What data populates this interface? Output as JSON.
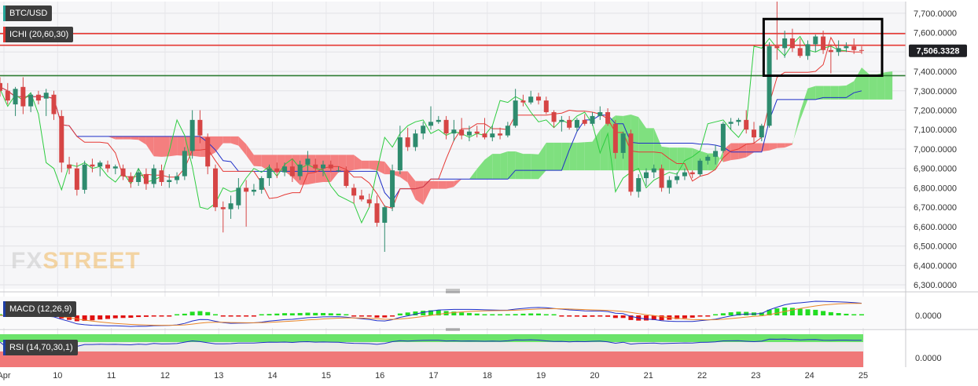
{
  "chart_data": {
    "type": "candlestick",
    "symbol": "BTC/USD",
    "indicators": {
      "ichimoku": {
        "label": "ICHI (20,60,30)"
      },
      "macd": {
        "label": "MACD (12,26,9)",
        "zero_label": "0.0000"
      },
      "rsi": {
        "label": "RSI (14,70,30,1)",
        "zero_label": "0.0000"
      }
    },
    "last_price": "7,506.3328",
    "y_axis": {
      "min": 6280,
      "max": 7760,
      "ticks": [
        "6,300.0000",
        "6,400.0000",
        "6,500.0000",
        "6,600.0000",
        "6,700.0000",
        "6,800.0000",
        "6,900.0000",
        "7,000.0000",
        "7,100.0000",
        "7,200.0000",
        "7,300.0000",
        "7,400.0000",
        "7,500.0000",
        "7,600.0000",
        "7,700.0000"
      ]
    },
    "x_axis": {
      "labels": [
        "Apr",
        "10",
        "11",
        "12",
        "13",
        "14",
        "15",
        "16",
        "17",
        "18",
        "19",
        "20",
        "21",
        "22",
        "23",
        "24",
        "25"
      ]
    },
    "horizontal_levels": [
      {
        "price": 7595,
        "color": "#e53935"
      },
      {
        "price": 7535,
        "color": "#e53935"
      },
      {
        "price": 7378,
        "color": "#2e7d32"
      }
    ],
    "highlight_box": {
      "x_range": [
        "23",
        "25"
      ],
      "price_range": [
        7378,
        7670
      ]
    },
    "candles": [
      {
        "o": 7340,
        "h": 7370,
        "l": 7270,
        "c": 7300
      },
      {
        "o": 7300,
        "h": 7340,
        "l": 7230,
        "c": 7250
      },
      {
        "o": 7230,
        "h": 7320,
        "l": 7170,
        "c": 7310
      },
      {
        "o": 7320,
        "h": 7370,
        "l": 7180,
        "c": 7220
      },
      {
        "o": 7220,
        "h": 7290,
        "l": 7190,
        "c": 7280
      },
      {
        "o": 7280,
        "h": 7300,
        "l": 7230,
        "c": 7250
      },
      {
        "o": 7260,
        "h": 7310,
        "l": 7170,
        "c": 7290
      },
      {
        "o": 7280,
        "h": 7300,
        "l": 7150,
        "c": 7180
      },
      {
        "o": 7170,
        "h": 7200,
        "l": 6880,
        "c": 6930
      },
      {
        "o": 6920,
        "h": 6960,
        "l": 6870,
        "c": 6900
      },
      {
        "o": 6900,
        "h": 6930,
        "l": 6760,
        "c": 6790
      },
      {
        "o": 6790,
        "h": 6940,
        "l": 6770,
        "c": 6920
      },
      {
        "o": 6920,
        "h": 6950,
        "l": 6880,
        "c": 6910
      },
      {
        "o": 6910,
        "h": 6940,
        "l": 6860,
        "c": 6930
      },
      {
        "o": 6920,
        "h": 6940,
        "l": 6880,
        "c": 6900
      },
      {
        "o": 6900,
        "h": 6920,
        "l": 6870,
        "c": 6910
      },
      {
        "o": 6900,
        "h": 6920,
        "l": 6840,
        "c": 6860
      },
      {
        "o": 6860,
        "h": 6880,
        "l": 6800,
        "c": 6830
      },
      {
        "o": 6830,
        "h": 6900,
        "l": 6810,
        "c": 6880
      },
      {
        "o": 6870,
        "h": 6900,
        "l": 6790,
        "c": 6820
      },
      {
        "o": 6820,
        "h": 6920,
        "l": 6800,
        "c": 6900
      },
      {
        "o": 6890,
        "h": 6920,
        "l": 6810,
        "c": 6830
      },
      {
        "o": 6830,
        "h": 6870,
        "l": 6800,
        "c": 6840
      },
      {
        "o": 6840,
        "h": 6880,
        "l": 6820,
        "c": 6860
      },
      {
        "o": 6860,
        "h": 7010,
        "l": 6840,
        "c": 6990
      },
      {
        "o": 6990,
        "h": 7200,
        "l": 6950,
        "c": 7150
      },
      {
        "o": 7150,
        "h": 7200,
        "l": 7030,
        "c": 7070
      },
      {
        "o": 7060,
        "h": 7080,
        "l": 6870,
        "c": 6910
      },
      {
        "o": 6900,
        "h": 6920,
        "l": 6680,
        "c": 6700
      },
      {
        "o": 6700,
        "h": 6730,
        "l": 6570,
        "c": 6690
      },
      {
        "o": 6690,
        "h": 6760,
        "l": 6640,
        "c": 6720
      },
      {
        "o": 6710,
        "h": 6850,
        "l": 6690,
        "c": 6800
      },
      {
        "o": 6800,
        "h": 6840,
        "l": 6600,
        "c": 6780
      },
      {
        "o": 6780,
        "h": 6820,
        "l": 6760,
        "c": 6790
      },
      {
        "o": 6790,
        "h": 6860,
        "l": 6770,
        "c": 6850
      },
      {
        "o": 6850,
        "h": 6920,
        "l": 6810,
        "c": 6900
      },
      {
        "o": 6900,
        "h": 6930,
        "l": 6850,
        "c": 6880
      },
      {
        "o": 6880,
        "h": 6930,
        "l": 6860,
        "c": 6910
      },
      {
        "o": 6910,
        "h": 6950,
        "l": 6830,
        "c": 6860
      },
      {
        "o": 6860,
        "h": 6940,
        "l": 6840,
        "c": 6920
      },
      {
        "o": 6920,
        "h": 6990,
        "l": 6880,
        "c": 6950
      },
      {
        "o": 6920,
        "h": 6950,
        "l": 6880,
        "c": 6900
      },
      {
        "o": 6900,
        "h": 6940,
        "l": 6860,
        "c": 6920
      },
      {
        "o": 6920,
        "h": 6940,
        "l": 6880,
        "c": 6900
      },
      {
        "o": 6890,
        "h": 6910,
        "l": 6880,
        "c": 6890
      },
      {
        "o": 6890,
        "h": 6910,
        "l": 6800,
        "c": 6810
      },
      {
        "o": 6800,
        "h": 6820,
        "l": 6720,
        "c": 6760
      },
      {
        "o": 6760,
        "h": 6790,
        "l": 6730,
        "c": 6740
      },
      {
        "o": 6740,
        "h": 6770,
        "l": 6700,
        "c": 6720
      },
      {
        "o": 6720,
        "h": 6760,
        "l": 6600,
        "c": 6620
      },
      {
        "o": 6620,
        "h": 6710,
        "l": 6470,
        "c": 6700
      },
      {
        "o": 6700,
        "h": 6920,
        "l": 6680,
        "c": 6890
      },
      {
        "o": 6890,
        "h": 7120,
        "l": 6870,
        "c": 7060
      },
      {
        "o": 7060,
        "h": 7110,
        "l": 6990,
        "c": 7010
      },
      {
        "o": 7010,
        "h": 7100,
        "l": 6990,
        "c": 7080
      },
      {
        "o": 7080,
        "h": 7140,
        "l": 7050,
        "c": 7120
      },
      {
        "o": 7120,
        "h": 7220,
        "l": 7100,
        "c": 7140
      },
      {
        "o": 7140,
        "h": 7170,
        "l": 7130,
        "c": 7150
      },
      {
        "o": 7150,
        "h": 7170,
        "l": 7050,
        "c": 7080
      },
      {
        "o": 7080,
        "h": 7150,
        "l": 7040,
        "c": 7100
      },
      {
        "o": 7100,
        "h": 7160,
        "l": 7050,
        "c": 7070
      },
      {
        "o": 7070,
        "h": 7120,
        "l": 7040,
        "c": 7090
      },
      {
        "o": 7090,
        "h": 7120,
        "l": 7060,
        "c": 7080
      },
      {
        "o": 7080,
        "h": 7160,
        "l": 7050,
        "c": 7060
      },
      {
        "o": 7060,
        "h": 7120,
        "l": 7040,
        "c": 7080
      },
      {
        "o": 7080,
        "h": 7110,
        "l": 7050,
        "c": 7070
      },
      {
        "o": 7070,
        "h": 7140,
        "l": 7060,
        "c": 7120
      },
      {
        "o": 7120,
        "h": 7310,
        "l": 7110,
        "c": 7250
      },
      {
        "o": 7250,
        "h": 7280,
        "l": 7220,
        "c": 7240
      },
      {
        "o": 7240,
        "h": 7300,
        "l": 7230,
        "c": 7270
      },
      {
        "o": 7270,
        "h": 7290,
        "l": 7230,
        "c": 7250
      },
      {
        "o": 7250,
        "h": 7270,
        "l": 7180,
        "c": 7190
      },
      {
        "o": 7190,
        "h": 7200,
        "l": 7110,
        "c": 7140
      },
      {
        "o": 7140,
        "h": 7170,
        "l": 7090,
        "c": 7150
      },
      {
        "o": 7150,
        "h": 7170,
        "l": 7100,
        "c": 7110
      },
      {
        "o": 7110,
        "h": 7160,
        "l": 7090,
        "c": 7150
      },
      {
        "o": 7150,
        "h": 7180,
        "l": 7120,
        "c": 7130
      },
      {
        "o": 7130,
        "h": 7190,
        "l": 7120,
        "c": 7170
      },
      {
        "o": 7170,
        "h": 7220,
        "l": 7150,
        "c": 7190
      },
      {
        "o": 7190,
        "h": 7210,
        "l": 7120,
        "c": 7130
      },
      {
        "o": 7130,
        "h": 7150,
        "l": 6950,
        "c": 6980
      },
      {
        "o": 6980,
        "h": 7090,
        "l": 6950,
        "c": 7080
      },
      {
        "o": 7080,
        "h": 7100,
        "l": 6760,
        "c": 6780
      },
      {
        "o": 6780,
        "h": 6870,
        "l": 6750,
        "c": 6850
      },
      {
        "o": 6850,
        "h": 6900,
        "l": 6810,
        "c": 6880
      },
      {
        "o": 6880,
        "h": 6920,
        "l": 6850,
        "c": 6900
      },
      {
        "o": 6900,
        "h": 6920,
        "l": 6780,
        "c": 6800
      },
      {
        "o": 6800,
        "h": 6860,
        "l": 6770,
        "c": 6840
      },
      {
        "o": 6840,
        "h": 6880,
        "l": 6820,
        "c": 6860
      },
      {
        "o": 6860,
        "h": 6900,
        "l": 6840,
        "c": 6880
      },
      {
        "o": 6880,
        "h": 6890,
        "l": 6850,
        "c": 6870
      },
      {
        "o": 6870,
        "h": 6950,
        "l": 6860,
        "c": 6940
      },
      {
        "o": 6940,
        "h": 6970,
        "l": 6920,
        "c": 6960
      },
      {
        "o": 6960,
        "h": 7020,
        "l": 6920,
        "c": 6990
      },
      {
        "o": 6990,
        "h": 7140,
        "l": 6980,
        "c": 7130
      },
      {
        "o": 7130,
        "h": 7160,
        "l": 7100,
        "c": 7140
      },
      {
        "o": 7140,
        "h": 7160,
        "l": 7120,
        "c": 7150
      },
      {
        "o": 7150,
        "h": 7200,
        "l": 7080,
        "c": 7100
      },
      {
        "o": 7100,
        "h": 7140,
        "l": 7030,
        "c": 7060
      },
      {
        "o": 7060,
        "h": 7130,
        "l": 7040,
        "c": 7120
      },
      {
        "o": 7120,
        "h": 7550,
        "l": 7110,
        "c": 7530
      },
      {
        "o": 7530,
        "h": 7760,
        "l": 7460,
        "c": 7520
      },
      {
        "o": 7520,
        "h": 7610,
        "l": 7470,
        "c": 7570
      },
      {
        "o": 7570,
        "h": 7620,
        "l": 7500,
        "c": 7520
      },
      {
        "o": 7520,
        "h": 7570,
        "l": 7470,
        "c": 7480
      },
      {
        "o": 7480,
        "h": 7560,
        "l": 7460,
        "c": 7540
      },
      {
        "o": 7540,
        "h": 7590,
        "l": 7500,
        "c": 7580
      },
      {
        "o": 7580,
        "h": 7610,
        "l": 7490,
        "c": 7510
      },
      {
        "o": 7510,
        "h": 7540,
        "l": 7390,
        "c": 7500
      },
      {
        "o": 7500,
        "h": 7560,
        "l": 7480,
        "c": 7520
      },
      {
        "o": 7520,
        "h": 7550,
        "l": 7500,
        "c": 7530
      },
      {
        "o": 7530,
        "h": 7570,
        "l": 7490,
        "c": 7510
      },
      {
        "o": 7510,
        "h": 7530,
        "l": 7490,
        "c": 7506
      }
    ]
  }
}
